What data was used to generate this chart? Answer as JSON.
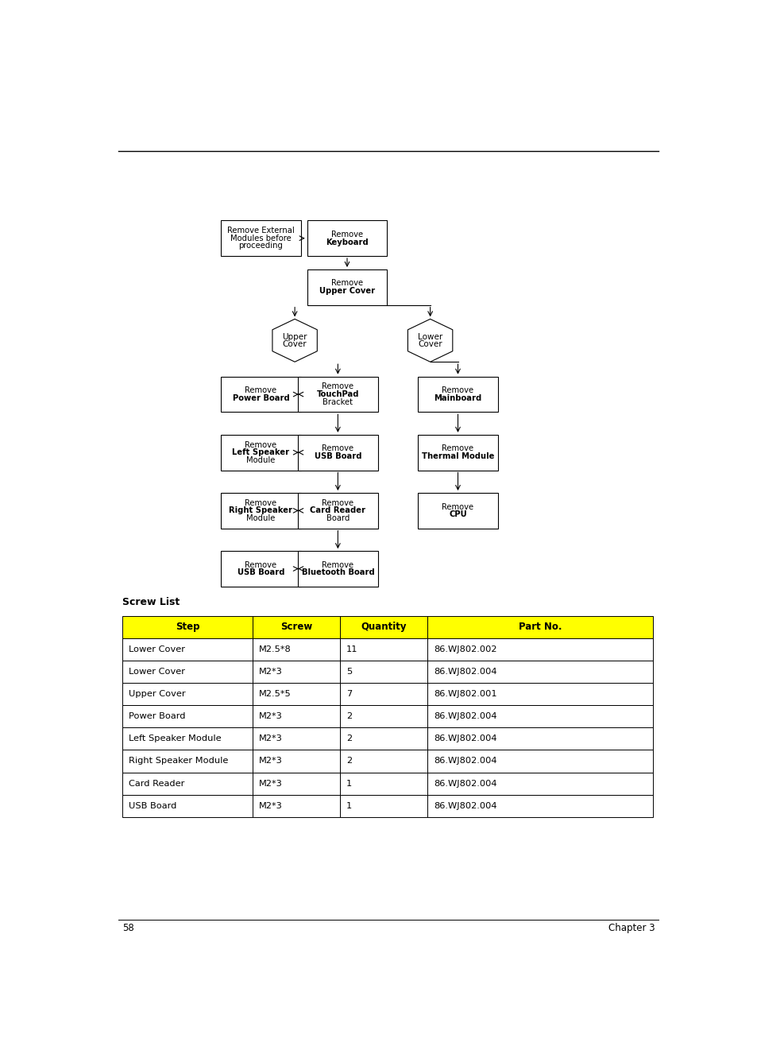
{
  "title_line": "58",
  "chapter": "Chapter 3",
  "screw_list_title": "Screw List",
  "table_header": [
    "Step",
    "Screw",
    "Quantity",
    "Part No."
  ],
  "table_header_color": "#FFFF00",
  "table_rows": [
    [
      "Lower Cover",
      "M2.5*8",
      "11",
      "86.WJ802.002"
    ],
    [
      "Lower Cover",
      "M2*3",
      "5",
      "86.WJ802.004"
    ],
    [
      "Upper Cover",
      "M2.5*5",
      "7",
      "86.WJ802.001"
    ],
    [
      "Power Board",
      "M2*3",
      "2",
      "86.WJ802.004"
    ],
    [
      "Left Speaker Module",
      "M2*3",
      "2",
      "86.WJ802.004"
    ],
    [
      "Right Speaker Module",
      "M2*3",
      "2",
      "86.WJ802.004"
    ],
    [
      "Card Reader",
      "M2*3",
      "1",
      "86.WJ802.004"
    ],
    [
      "USB Board",
      "M2*3",
      "1",
      "86.WJ802.004"
    ]
  ],
  "flowchart_bg": "#FFFFFF"
}
